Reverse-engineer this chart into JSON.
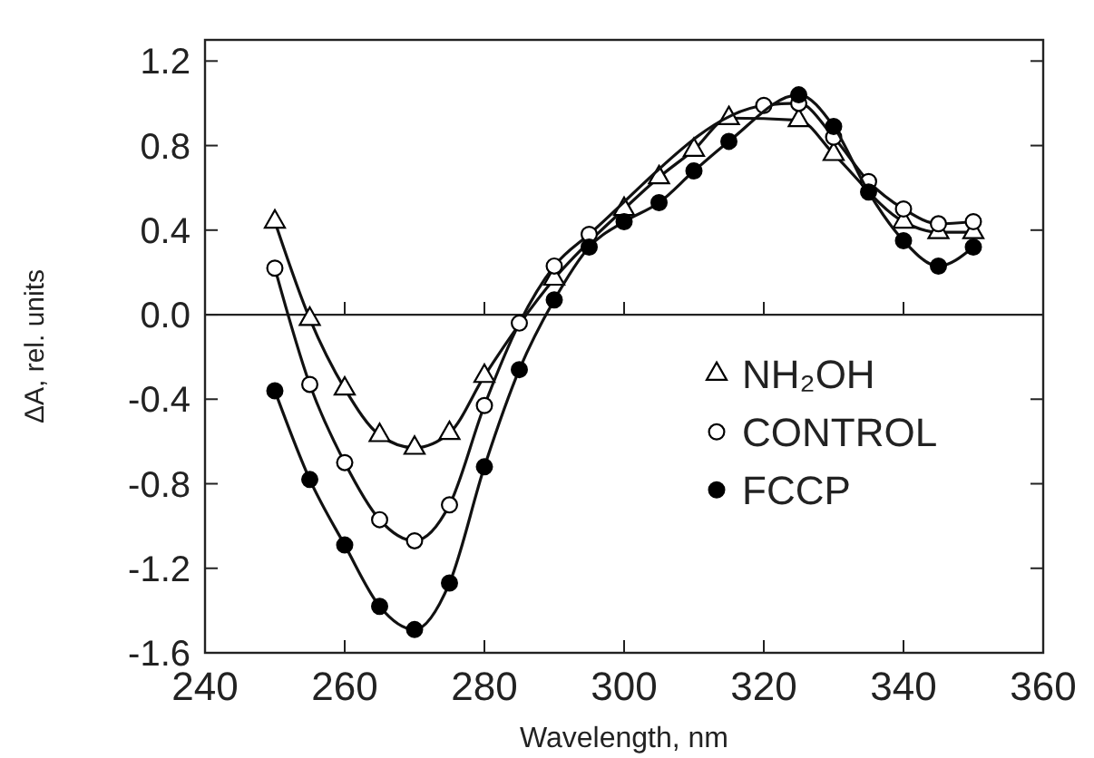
{
  "chart_data": {
    "type": "line",
    "xlabel": "Wavelength, nm",
    "ylabel": "ΔA, rel. units",
    "x": [
      250,
      255,
      260,
      265,
      270,
      275,
      280,
      285,
      290,
      295,
      300,
      305,
      310,
      315,
      320,
      325,
      330,
      335,
      340,
      345,
      350
    ],
    "xlim": [
      240,
      360
    ],
    "xticks": [
      240,
      260,
      280,
      300,
      320,
      340,
      360
    ],
    "ylim": [
      -1.6,
      1.3
    ],
    "yticks": [
      {
        "value": 1.2,
        "label": "1.2"
      },
      {
        "value": 0.8,
        "label": "0.8"
      },
      {
        "value": 0.4,
        "label": "0.4"
      },
      {
        "value": 0,
        "label": "0.0"
      },
      {
        "value": -0.4,
        "label": "-0.4"
      },
      {
        "value": -0.8,
        "label": "-0.8"
      },
      {
        "value": -1.2,
        "label": "-1.2"
      },
      {
        "value": -1.6,
        "label": "-1.6"
      }
    ],
    "ref_lines": [
      {
        "axis": "y",
        "value": 0,
        "color": "#222222"
      }
    ],
    "legend": "right",
    "grid": false,
    "line_style": "solid",
    "series": [
      {
        "name": "NH₂OH",
        "marker": "triangle",
        "color": "#ffffff",
        "values": [
          0.44,
          -0.02,
          -0.35,
          -0.57,
          -0.63,
          -0.56,
          -0.29,
          null,
          0.17,
          null,
          0.5,
          0.65,
          0.78,
          0.93,
          null,
          0.92,
          0.76,
          null,
          0.44,
          0.39,
          0.39
        ]
      },
      {
        "name": "CONTROL",
        "marker": "circle",
        "color": "#ffffff",
        "values": [
          0.22,
          -0.33,
          -0.7,
          -0.97,
          -1.07,
          -0.9,
          -0.43,
          -0.04,
          0.23,
          0.38,
          null,
          null,
          null,
          null,
          0.99,
          1.0,
          0.84,
          0.63,
          0.5,
          0.43,
          0.44
        ]
      },
      {
        "name": "FCCP",
        "marker": "circle",
        "color": "#000000",
        "values": [
          -0.36,
          -0.78,
          -1.09,
          -1.38,
          -1.49,
          -1.27,
          -0.72,
          -0.26,
          0.07,
          0.32,
          0.44,
          0.53,
          0.68,
          0.82,
          null,
          1.04,
          0.89,
          0.58,
          0.35,
          0.23,
          0.32
        ]
      }
    ]
  }
}
